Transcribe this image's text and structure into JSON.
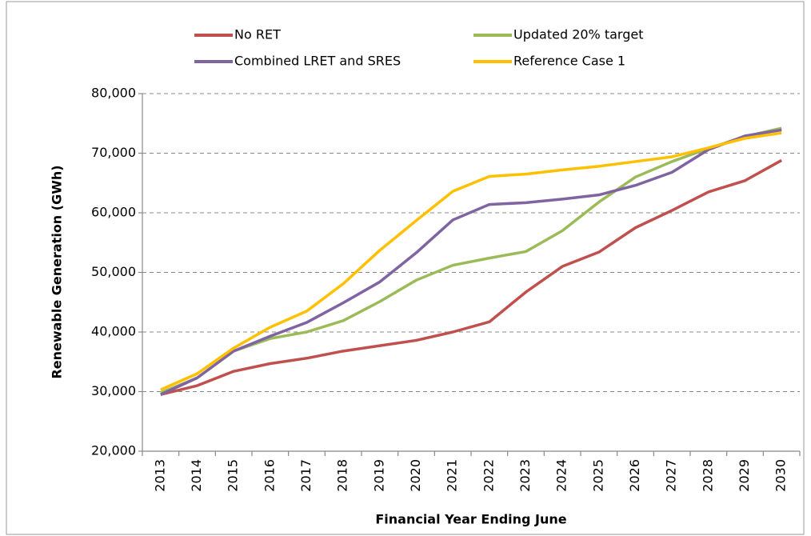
{
  "chart_data": {
    "type": "line",
    "x_label": "Financial Year Ending June",
    "y_label": "Renewable Generation (GWh)",
    "categories": [
      "2013",
      "2014",
      "2015",
      "2016",
      "2017",
      "2018",
      "2019",
      "2020",
      "2021",
      "2022",
      "2023",
      "2024",
      "2025",
      "2026",
      "2027",
      "2028",
      "2029",
      "2030"
    ],
    "series": [
      {
        "name": "No RET",
        "color": "#c0504d",
        "values": [
          29500,
          31000,
          33400,
          34700,
          35600,
          36800,
          37700,
          38600,
          40000,
          41700,
          46700,
          51000,
          53400,
          57500,
          60400,
          63500,
          65400,
          68800
        ]
      },
      {
        "name": "Updated 20% target",
        "color": "#9bbb59",
        "values": [
          29800,
          32300,
          36800,
          38900,
          40000,
          41900,
          45100,
          48700,
          51200,
          52400,
          53500,
          57000,
          61800,
          66000,
          68600,
          70800,
          72800,
          74200
        ]
      },
      {
        "name": "Combined LRET and SRES",
        "color": "#8064a2",
        "values": [
          29500,
          32300,
          36800,
          39300,
          41600,
          44900,
          48400,
          53300,
          58800,
          61400,
          61700,
          62300,
          63000,
          64600,
          66800,
          70600,
          72900,
          73900
        ]
      },
      {
        "name": "Reference Case 1",
        "color": "#ffc000",
        "values": [
          30300,
          33000,
          37300,
          40800,
          43500,
          48100,
          53700,
          58700,
          63600,
          66100,
          66500,
          67200,
          67800,
          68600,
          69400,
          70900,
          72500,
          73400
        ]
      }
    ],
    "ylim": [
      20000,
      80000
    ],
    "yticks": [
      {
        "value": 20000,
        "label": "20,000"
      },
      {
        "value": 30000,
        "label": "30,000"
      },
      {
        "value": 40000,
        "label": "40,000"
      },
      {
        "value": 50000,
        "label": "50,000"
      },
      {
        "value": 60000,
        "label": "60,000"
      },
      {
        "value": 70000,
        "label": "70,000"
      },
      {
        "value": 80000,
        "label": "80,000"
      }
    ],
    "grid": true,
    "legend": "top"
  }
}
